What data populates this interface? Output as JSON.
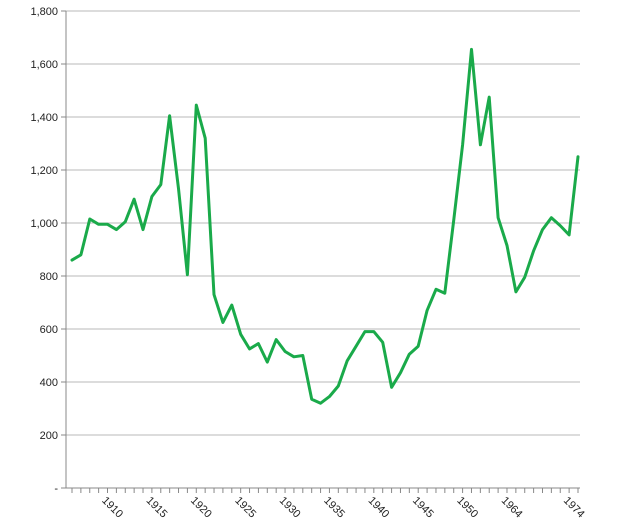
{
  "chart_data": {
    "type": "line",
    "title": "",
    "xlabel": "",
    "ylabel": "",
    "ylim": [
      0,
      1800
    ],
    "y_ticks": [
      {
        "value": 1800,
        "label": "1,800"
      },
      {
        "value": 1600,
        "label": "1,600"
      },
      {
        "value": 1400,
        "label": "1,400"
      },
      {
        "value": 1200,
        "label": "1,200"
      },
      {
        "value": 1000,
        "label": "1,000"
      },
      {
        "value": 800,
        "label": "800"
      },
      {
        "value": 600,
        "label": "600"
      },
      {
        "value": 400,
        "label": "400"
      },
      {
        "value": 200,
        "label": "200"
      },
      {
        "value": 0,
        "label": "-"
      }
    ],
    "x_tick_labels": [
      {
        "label": "1910",
        "index": 5
      },
      {
        "label": "1915",
        "index": 10
      },
      {
        "label": "1920",
        "index": 15
      },
      {
        "label": "1925",
        "index": 20
      },
      {
        "label": "1930",
        "index": 25
      },
      {
        "label": "1935",
        "index": 30
      },
      {
        "label": "1940",
        "index": 35
      },
      {
        "label": "1945",
        "index": 40
      },
      {
        "label": "1950",
        "index": 45
      },
      {
        "label": "1964",
        "index": 50
      },
      {
        "label": "1974",
        "index": 57
      }
    ],
    "grid": true,
    "legend": "none",
    "line_color": "#1aaa4a",
    "grid_color": "#b8b8b8",
    "axis_color": "#888888",
    "series": [
      {
        "values": [
          860,
          880,
          1015,
          995,
          995,
          975,
          1005,
          1090,
          975,
          1100,
          1145,
          1405,
          1130,
          805,
          1445,
          1320,
          730,
          625,
          690,
          580,
          525,
          545,
          475,
          560,
          515,
          495,
          500,
          335,
          320,
          345,
          385,
          480,
          535,
          590,
          590,
          550,
          380,
          435,
          505,
          535,
          670,
          750,
          735,
          1010,
          1295,
          1655,
          1295,
          1475,
          1020,
          915,
          740,
          795,
          895,
          975,
          1020,
          990,
          955,
          1250
        ]
      }
    ]
  }
}
